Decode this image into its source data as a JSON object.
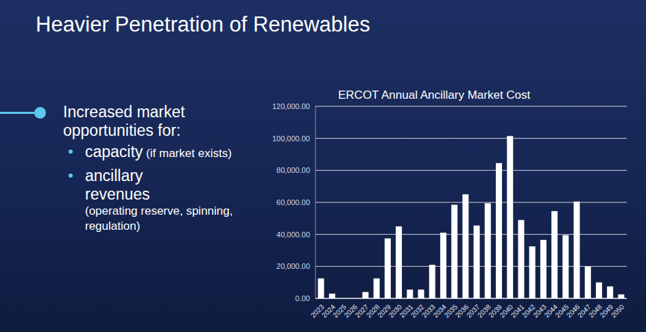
{
  "slide": {
    "title": "Heavier Penetration of Renewables",
    "heading": "Increased market opportunities for:",
    "bullets": [
      {
        "text": "capacity",
        "note": "(if market exists)"
      },
      {
        "text": "ancillary revenues",
        "note": "(operating reserve, spinning, regulation)"
      }
    ]
  },
  "chart_data": {
    "type": "bar",
    "title": "ERCOT Annual Ancillary Market Cost",
    "categories": [
      "2023",
      "2024",
      "2025",
      "2026",
      "2027",
      "2028",
      "2029",
      "2030",
      "2031",
      "2032",
      "2033",
      "2034",
      "2035",
      "2036",
      "2037",
      "2038",
      "2039",
      "2040",
      "2041",
      "2042",
      "2043",
      "2044",
      "2045",
      "2046",
      "2047",
      "2048",
      "2049",
      "2050"
    ],
    "values": [
      12500,
      3000,
      0,
      0,
      4000,
      12500,
      37500,
      45000,
      5500,
      5500,
      21000,
      41000,
      58500,
      65000,
      45500,
      59500,
      84500,
      101500,
      49000,
      32500,
      36500,
      54500,
      39500,
      60500,
      20000,
      10000,
      7500,
      2500
    ],
    "color": "#ffffff",
    "ylim": [
      0,
      120000
    ],
    "yticks": [
      {
        "value": 0,
        "label": "0.00"
      },
      {
        "value": 20000,
        "label": "20,000.00"
      },
      {
        "value": 40000,
        "label": "40,000.00"
      },
      {
        "value": 60000,
        "label": "60,000.00"
      },
      {
        "value": 80000,
        "label": "80,000.00"
      },
      {
        "value": 100000,
        "label": "100,000.00"
      },
      {
        "value": 120000,
        "label": "120,000.00"
      }
    ],
    "grid": true
  }
}
